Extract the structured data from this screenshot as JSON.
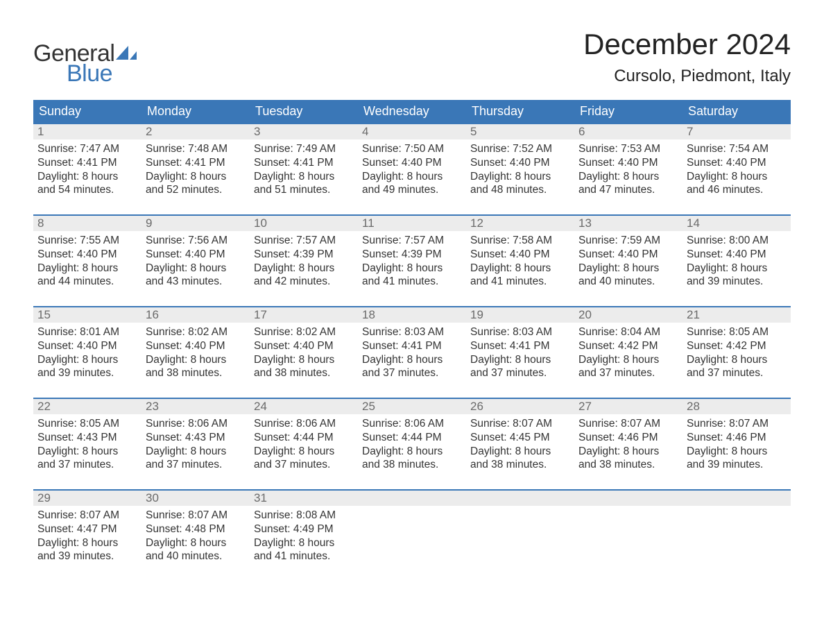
{
  "logo": {
    "general": "General",
    "blue": "Blue",
    "sail_color": "#3a77b7"
  },
  "title": "December 2024",
  "location": "Cursolo, Piedmont, Italy",
  "colors": {
    "header_bg": "#3a77b7",
    "header_text": "#ffffff",
    "daynum_bg": "#ececec",
    "daynum_text": "#6a6a6a",
    "body_text": "#333333",
    "week_border": "#3a77b7"
  },
  "day_headers": [
    "Sunday",
    "Monday",
    "Tuesday",
    "Wednesday",
    "Thursday",
    "Friday",
    "Saturday"
  ],
  "weeks": [
    [
      {
        "num": "1",
        "sunrise": "Sunrise: 7:47 AM",
        "sunset": "Sunset: 4:41 PM",
        "daylight": "Daylight: 8 hours and 54 minutes."
      },
      {
        "num": "2",
        "sunrise": "Sunrise: 7:48 AM",
        "sunset": "Sunset: 4:41 PM",
        "daylight": "Daylight: 8 hours and 52 minutes."
      },
      {
        "num": "3",
        "sunrise": "Sunrise: 7:49 AM",
        "sunset": "Sunset: 4:41 PM",
        "daylight": "Daylight: 8 hours and 51 minutes."
      },
      {
        "num": "4",
        "sunrise": "Sunrise: 7:50 AM",
        "sunset": "Sunset: 4:40 PM",
        "daylight": "Daylight: 8 hours and 49 minutes."
      },
      {
        "num": "5",
        "sunrise": "Sunrise: 7:52 AM",
        "sunset": "Sunset: 4:40 PM",
        "daylight": "Daylight: 8 hours and 48 minutes."
      },
      {
        "num": "6",
        "sunrise": "Sunrise: 7:53 AM",
        "sunset": "Sunset: 4:40 PM",
        "daylight": "Daylight: 8 hours and 47 minutes."
      },
      {
        "num": "7",
        "sunrise": "Sunrise: 7:54 AM",
        "sunset": "Sunset: 4:40 PM",
        "daylight": "Daylight: 8 hours and 46 minutes."
      }
    ],
    [
      {
        "num": "8",
        "sunrise": "Sunrise: 7:55 AM",
        "sunset": "Sunset: 4:40 PM",
        "daylight": "Daylight: 8 hours and 44 minutes."
      },
      {
        "num": "9",
        "sunrise": "Sunrise: 7:56 AM",
        "sunset": "Sunset: 4:40 PM",
        "daylight": "Daylight: 8 hours and 43 minutes."
      },
      {
        "num": "10",
        "sunrise": "Sunrise: 7:57 AM",
        "sunset": "Sunset: 4:39 PM",
        "daylight": "Daylight: 8 hours and 42 minutes."
      },
      {
        "num": "11",
        "sunrise": "Sunrise: 7:57 AM",
        "sunset": "Sunset: 4:39 PM",
        "daylight": "Daylight: 8 hours and 41 minutes."
      },
      {
        "num": "12",
        "sunrise": "Sunrise: 7:58 AM",
        "sunset": "Sunset: 4:40 PM",
        "daylight": "Daylight: 8 hours and 41 minutes."
      },
      {
        "num": "13",
        "sunrise": "Sunrise: 7:59 AM",
        "sunset": "Sunset: 4:40 PM",
        "daylight": "Daylight: 8 hours and 40 minutes."
      },
      {
        "num": "14",
        "sunrise": "Sunrise: 8:00 AM",
        "sunset": "Sunset: 4:40 PM",
        "daylight": "Daylight: 8 hours and 39 minutes."
      }
    ],
    [
      {
        "num": "15",
        "sunrise": "Sunrise: 8:01 AM",
        "sunset": "Sunset: 4:40 PM",
        "daylight": "Daylight: 8 hours and 39 minutes."
      },
      {
        "num": "16",
        "sunrise": "Sunrise: 8:02 AM",
        "sunset": "Sunset: 4:40 PM",
        "daylight": "Daylight: 8 hours and 38 minutes."
      },
      {
        "num": "17",
        "sunrise": "Sunrise: 8:02 AM",
        "sunset": "Sunset: 4:40 PM",
        "daylight": "Daylight: 8 hours and 38 minutes."
      },
      {
        "num": "18",
        "sunrise": "Sunrise: 8:03 AM",
        "sunset": "Sunset: 4:41 PM",
        "daylight": "Daylight: 8 hours and 37 minutes."
      },
      {
        "num": "19",
        "sunrise": "Sunrise: 8:03 AM",
        "sunset": "Sunset: 4:41 PM",
        "daylight": "Daylight: 8 hours and 37 minutes."
      },
      {
        "num": "20",
        "sunrise": "Sunrise: 8:04 AM",
        "sunset": "Sunset: 4:42 PM",
        "daylight": "Daylight: 8 hours and 37 minutes."
      },
      {
        "num": "21",
        "sunrise": "Sunrise: 8:05 AM",
        "sunset": "Sunset: 4:42 PM",
        "daylight": "Daylight: 8 hours and 37 minutes."
      }
    ],
    [
      {
        "num": "22",
        "sunrise": "Sunrise: 8:05 AM",
        "sunset": "Sunset: 4:43 PM",
        "daylight": "Daylight: 8 hours and 37 minutes."
      },
      {
        "num": "23",
        "sunrise": "Sunrise: 8:06 AM",
        "sunset": "Sunset: 4:43 PM",
        "daylight": "Daylight: 8 hours and 37 minutes."
      },
      {
        "num": "24",
        "sunrise": "Sunrise: 8:06 AM",
        "sunset": "Sunset: 4:44 PM",
        "daylight": "Daylight: 8 hours and 37 minutes."
      },
      {
        "num": "25",
        "sunrise": "Sunrise: 8:06 AM",
        "sunset": "Sunset: 4:44 PM",
        "daylight": "Daylight: 8 hours and 38 minutes."
      },
      {
        "num": "26",
        "sunrise": "Sunrise: 8:07 AM",
        "sunset": "Sunset: 4:45 PM",
        "daylight": "Daylight: 8 hours and 38 minutes."
      },
      {
        "num": "27",
        "sunrise": "Sunrise: 8:07 AM",
        "sunset": "Sunset: 4:46 PM",
        "daylight": "Daylight: 8 hours and 38 minutes."
      },
      {
        "num": "28",
        "sunrise": "Sunrise: 8:07 AM",
        "sunset": "Sunset: 4:46 PM",
        "daylight": "Daylight: 8 hours and 39 minutes."
      }
    ],
    [
      {
        "num": "29",
        "sunrise": "Sunrise: 8:07 AM",
        "sunset": "Sunset: 4:47 PM",
        "daylight": "Daylight: 8 hours and 39 minutes."
      },
      {
        "num": "30",
        "sunrise": "Sunrise: 8:07 AM",
        "sunset": "Sunset: 4:48 PM",
        "daylight": "Daylight: 8 hours and 40 minutes."
      },
      {
        "num": "31",
        "sunrise": "Sunrise: 8:08 AM",
        "sunset": "Sunset: 4:49 PM",
        "daylight": "Daylight: 8 hours and 41 minutes."
      },
      {
        "empty": true
      },
      {
        "empty": true
      },
      {
        "empty": true
      },
      {
        "empty": true
      }
    ]
  ]
}
